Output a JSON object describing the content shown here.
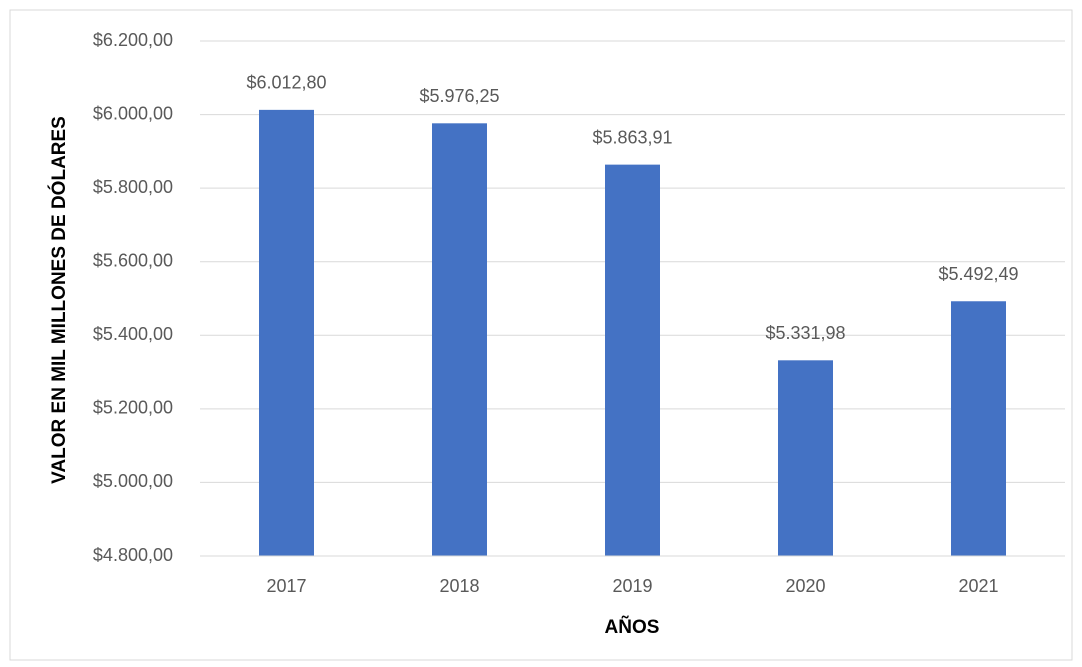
{
  "chart_data": {
    "type": "bar",
    "x_label": "AÑOS",
    "y_label": "VALOR EN MIL MILLONES DE DÓLARES",
    "categories": [
      "2017",
      "2018",
      "2019",
      "2020",
      "2021"
    ],
    "values": [
      6012.8,
      5976.25,
      5863.91,
      5331.98,
      5492.49
    ],
    "value_labels": [
      "$6.012,80",
      "$5.976,25",
      "$5.863,91",
      "$5.331,98",
      "$5.492,49"
    ],
    "color": "#4472c4",
    "ylim": [
      4800,
      6200
    ],
    "yticks": [
      {
        "value": 4800,
        "label": "$4.800,00"
      },
      {
        "value": 5000,
        "label": "$5.000,00"
      },
      {
        "value": 5200,
        "label": "$5.200,00"
      },
      {
        "value": 5400,
        "label": "$5.400,00"
      },
      {
        "value": 5600,
        "label": "$5.600,00"
      },
      {
        "value": 5800,
        "label": "$5.800,00"
      },
      {
        "value": 6000,
        "label": "$6.000,00"
      },
      {
        "value": 6200,
        "label": "$6.200,00"
      }
    ],
    "grid": true
  }
}
